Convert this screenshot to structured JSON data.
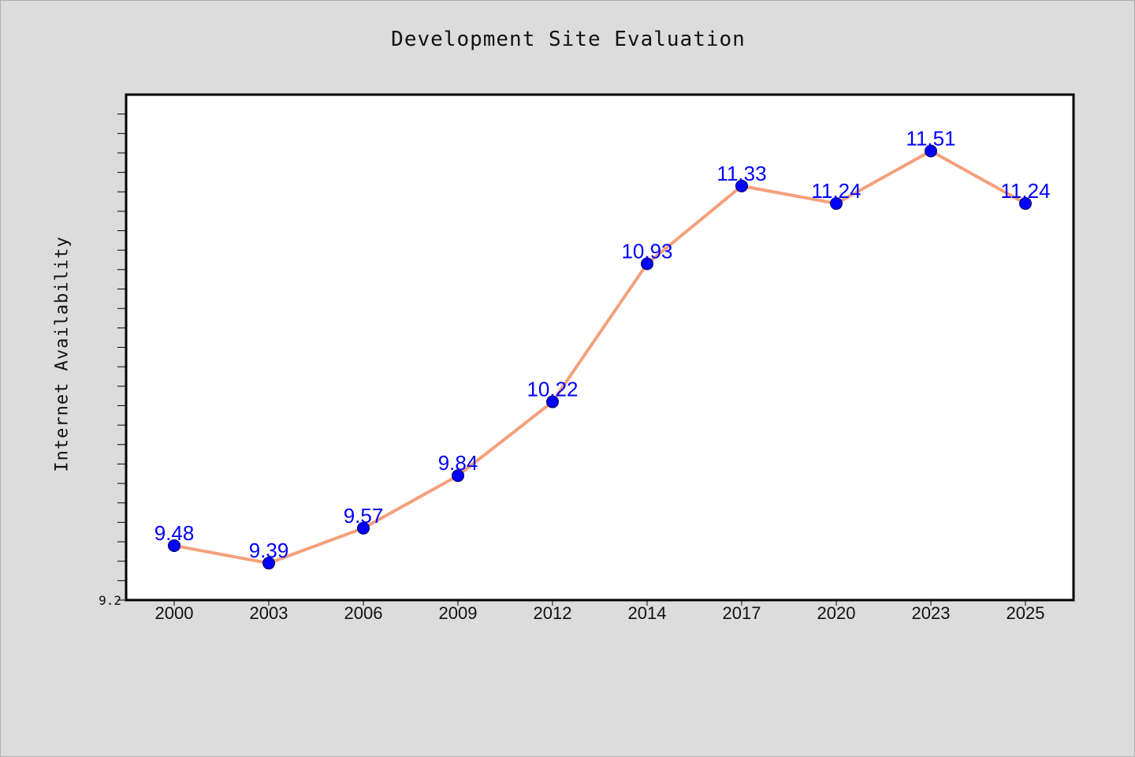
{
  "chart_data": {
    "type": "line",
    "title": "Development Site Evaluation",
    "xlabel": "",
    "ylabel": "Internet Availability",
    "categories": [
      "2000",
      "2003",
      "2006",
      "2009",
      "2012",
      "2014",
      "2017",
      "2020",
      "2023",
      "2025"
    ],
    "series": [
      {
        "values": [
          9.48,
          9.39,
          9.57,
          9.84,
          10.22,
          10.93,
          11.33,
          11.24,
          11.51,
          11.24
        ],
        "line_color": "#f4a07c",
        "marker_color": "#0000ff"
      }
    ],
    "data_labels": [
      "9.48",
      "9.39",
      "9.57",
      "9.84",
      "10.22",
      "10.93",
      "11.33",
      "11.24",
      "11.51",
      "11.24"
    ],
    "y_min_label": "9.2",
    "ylim": [
      9.2,
      11.8
    ],
    "grid": false,
    "legend": "none"
  }
}
